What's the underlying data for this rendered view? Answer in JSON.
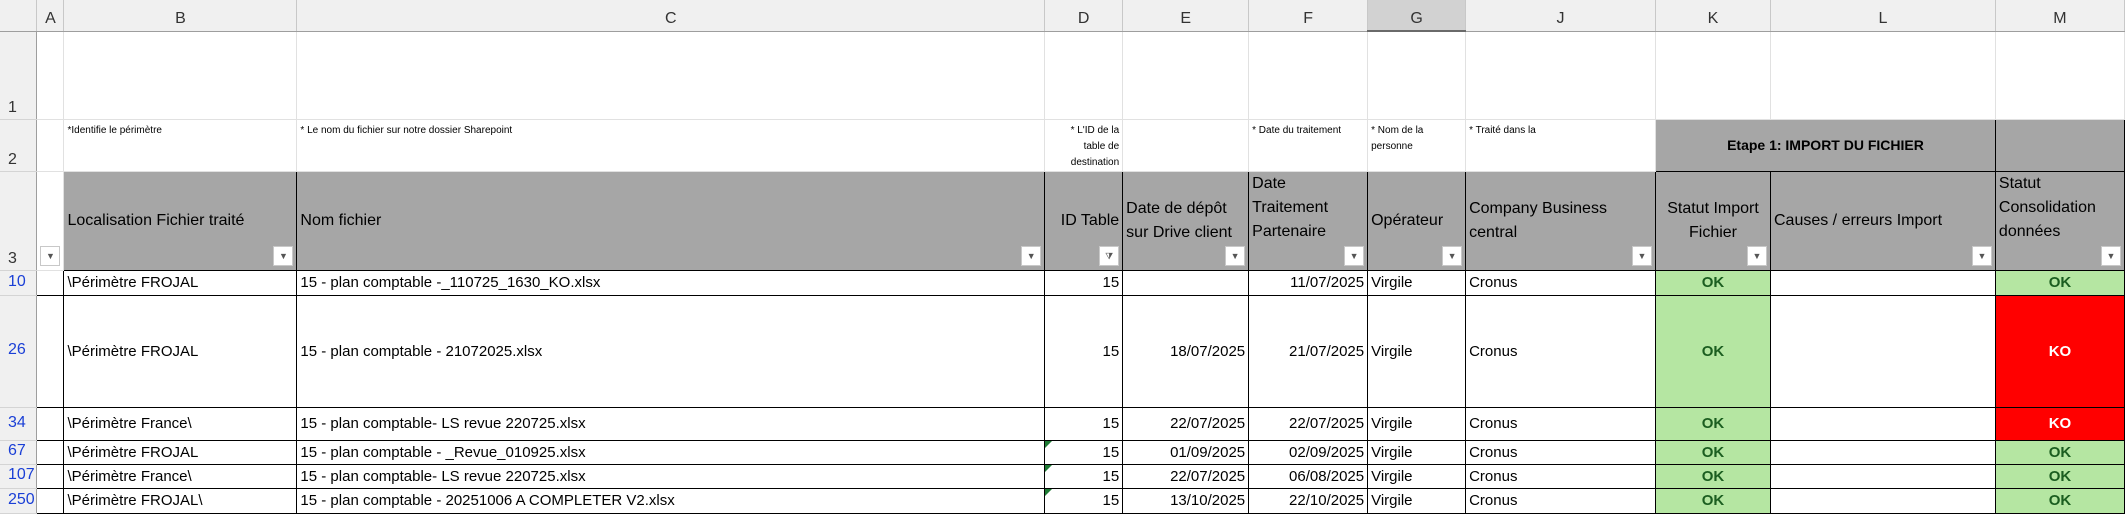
{
  "columns": [
    "A",
    "B",
    "C",
    "D",
    "E",
    "F",
    "G",
    "J",
    "K",
    "L",
    "M"
  ],
  "notes": {
    "B": "*Identifie le périmètre",
    "C": "* Le nom du fichier sur notre dossier Sharepoint",
    "D": "* L'ID de la table de destination",
    "F": "* Date du traitement",
    "G": "* Nom de la personne",
    "J": "* Traité dans la"
  },
  "section_title": "Etape 1: IMPORT DU FICHIER",
  "headers": {
    "B": "Localisation Fichier traité",
    "C": "Nom fichier",
    "D": "ID Table",
    "E": "Date de dépôt sur Drive client",
    "F": "Date Traitement Partenaire",
    "G": "Opérateur",
    "J": "Company Business central",
    "K": "Statut Import Fichier",
    "L": "Causes / erreurs Import",
    "M": "Statut Consolidation données"
  },
  "row_numbers": [
    "1",
    "2",
    "3"
  ],
  "rows": [
    {
      "n": "10",
      "loc": "\\Périmètre FROJAL",
      "file": "15 - plan comptable -_110725_1630_KO.xlsx",
      "id": "15",
      "depot": "",
      "trait": "11/07/2025",
      "op": "Virgile",
      "company": "Cronus",
      "import": "OK",
      "causes": "",
      "conso": "OK"
    },
    {
      "n": "26",
      "loc": "\\Périmètre FROJAL",
      "file": "15 - plan comptable - 21072025.xlsx",
      "id": "15",
      "depot": "18/07/2025",
      "trait": "21/07/2025",
      "op": "Virgile",
      "company": "Cronus",
      "import": "OK",
      "causes": "",
      "conso": "KO"
    },
    {
      "n": "34",
      "loc": "\\Périmètre France\\",
      "file": "15 - plan comptable- LS revue 220725.xlsx",
      "id": "15",
      "depot": "22/07/2025",
      "trait": "22/07/2025",
      "op": "Virgile",
      "company": "Cronus",
      "import": "OK",
      "causes": "",
      "conso": "KO"
    },
    {
      "n": "67",
      "loc": "\\Périmètre FROJAL",
      "file": "15 - plan comptable - _Revue_010925.xlsx",
      "id": "15",
      "depot": "01/09/2025",
      "trait": "02/09/2025",
      "op": "Virgile",
      "company": "Cronus",
      "import": "OK",
      "causes": "",
      "conso": "OK"
    },
    {
      "n": "107",
      "loc": "\\Périmètre France\\",
      "file": "15 - plan comptable- LS revue 220725.xlsx",
      "id": "15",
      "depot": "22/07/2025",
      "trait": "06/08/2025",
      "op": "Virgile",
      "company": "Cronus",
      "import": "OK",
      "causes": "",
      "conso": "OK"
    },
    {
      "n": "250",
      "loc": "\\Périmètre FROJAL\\",
      "file": "15 - plan comptable - 20251006 A COMPLETER V2.xlsx",
      "id": "15",
      "depot": "13/10/2025",
      "trait": "22/10/2025",
      "op": "Virgile",
      "company": "Cronus",
      "import": "OK",
      "causes": "",
      "conso": "OK"
    }
  ],
  "colors": {
    "ok_bg": "#b5e6a2",
    "ok_text": "#1b5e20",
    "ko_bg": "#ff0000",
    "header_bg": "#a6a6a6",
    "row_number_filtered": "#1a3fd6"
  }
}
